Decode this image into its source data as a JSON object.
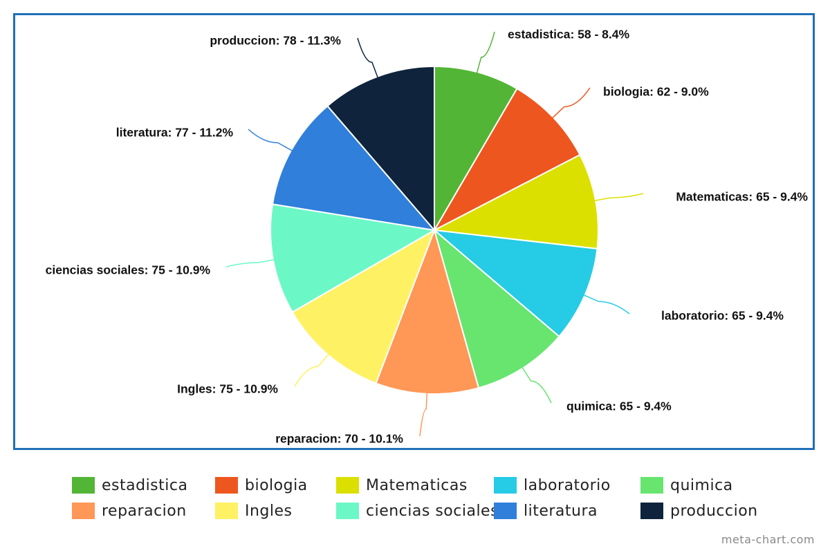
{
  "chart_data": {
    "type": "pie",
    "slices": [
      {
        "name": "estadistica",
        "value": 58,
        "percent": "8.4%",
        "color": "#52b535",
        "label": "estadistica: 58 - 8.4%"
      },
      {
        "name": "biologia",
        "value": 62,
        "percent": "9.0%",
        "color": "#ee561f",
        "label": "biologia: 62 - 9.0%"
      },
      {
        "name": "Matematicas",
        "value": 65,
        "percent": "9.4%",
        "color": "#dce000",
        "label": "Matematicas: 65 - 9.4%"
      },
      {
        "name": "laboratorio",
        "value": 65,
        "percent": "9.4%",
        "color": "#26cbe5",
        "label": "laboratorio: 65 - 9.4%"
      },
      {
        "name": "quimica",
        "value": 65,
        "percent": "9.4%",
        "color": "#67e56f",
        "label": "quimica: 65 - 9.4%"
      },
      {
        "name": "reparacion",
        "value": 70,
        "percent": "10.1%",
        "color": "#ff9757",
        "label": "reparacion: 70 - 10.1%"
      },
      {
        "name": "Ingles",
        "value": 75,
        "percent": "10.9%",
        "color": "#fff164",
        "label": "Ingles: 75 - 10.9%"
      },
      {
        "name": "ciencias sociales",
        "value": 75,
        "percent": "10.9%",
        "color": "#6cf8c6",
        "label": "ciencias sociales: 75 - 10.9%"
      },
      {
        "name": "literatura",
        "value": 77,
        "percent": "11.2%",
        "color": "#2f7fdb",
        "label": "literatura: 77 - 11.2%"
      },
      {
        "name": "produccion",
        "value": 78,
        "percent": "11.3%",
        "color": "#0f233c",
        "label": "produccion: 78 - 11.3%"
      }
    ],
    "legend_placement": "bottom"
  },
  "footer": {
    "watermark": "meta-chart.com"
  }
}
